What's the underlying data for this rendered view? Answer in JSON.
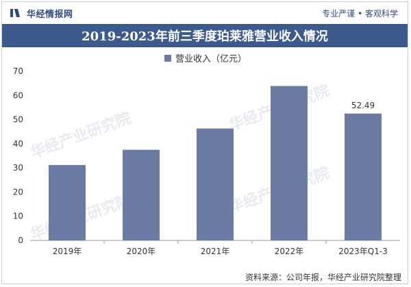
{
  "header": {
    "brand": "华经情报网",
    "slogan": "专业严谨 • 客观科学"
  },
  "title": "2019-2023年前三季度珀莱雅营业收入情况",
  "source": "资料来源：公司年报，华经产业研究院整理",
  "watermark": "华经产业研究院",
  "colors": {
    "bar": "#6b7ba4",
    "title_bg": "#3c5a8c",
    "brand": "#2e4a7d"
  },
  "chart_data": {
    "type": "bar",
    "categories": [
      "2019年",
      "2020年",
      "2021年",
      "2022年",
      "2023年Q1-3"
    ],
    "series": [
      {
        "name": "营业收入（亿元）",
        "values": [
          31.2,
          37.5,
          46.3,
          63.9,
          52.49
        ]
      }
    ],
    "data_labels": [
      "",
      "",
      "",
      "",
      "52.49"
    ],
    "ylim": [
      0,
      70
    ],
    "yticks": [
      0,
      10,
      20,
      30,
      40,
      50,
      60,
      70
    ],
    "legend": "top-center",
    "grid": false
  }
}
